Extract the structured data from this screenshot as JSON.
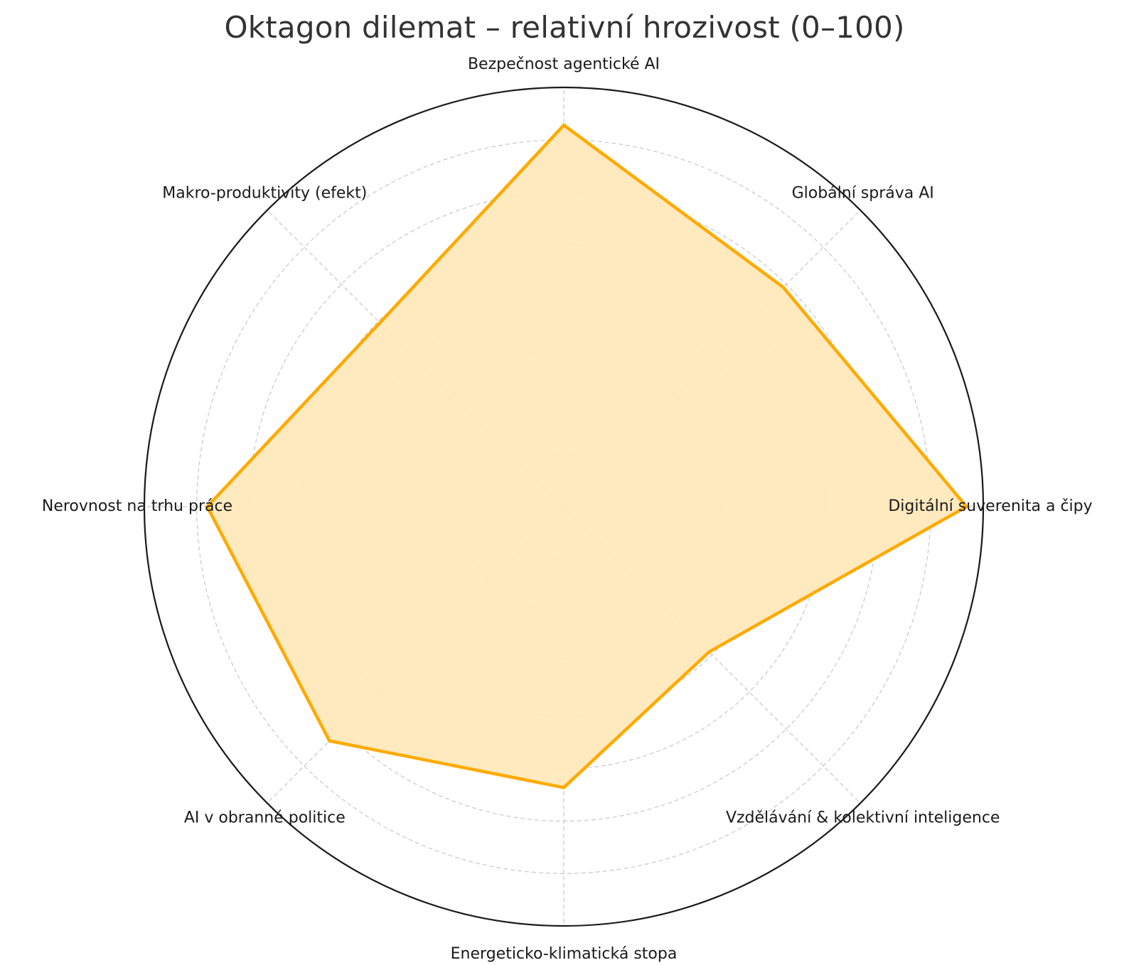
{
  "chart_data": {
    "type": "radar",
    "title": "Oktagon dilemat – relativní hrozivost (0–100)",
    "categories": [
      "Bezpečnost agentické AI",
      "Globální správa AI",
      "Digitální suverenita a čipy",
      "Vzdělávání & kolektivní inteligence",
      "Energeticko-klimatická stopa",
      "AI v obranné politice",
      "Nerovnost na trhu práce",
      "Makro-produktivity (efekt)"
    ],
    "series": [
      {
        "values": [
          91,
          74,
          96,
          49,
          67,
          79,
          85,
          62
        ]
      }
    ],
    "rlim": [
      0,
      100
    ],
    "r_gridlines": [
      12.5,
      25,
      37.5,
      50,
      62.5,
      75,
      87.5,
      100
    ],
    "grid": true,
    "grid_style": "dashed",
    "radial_tick_labels_shown": false,
    "legend": "none",
    "colors": {
      "line": "#FFAA00",
      "fill": "#FFE8BA",
      "grid": "#c8c8c8",
      "outer_circle": "#1a1a1a"
    }
  }
}
